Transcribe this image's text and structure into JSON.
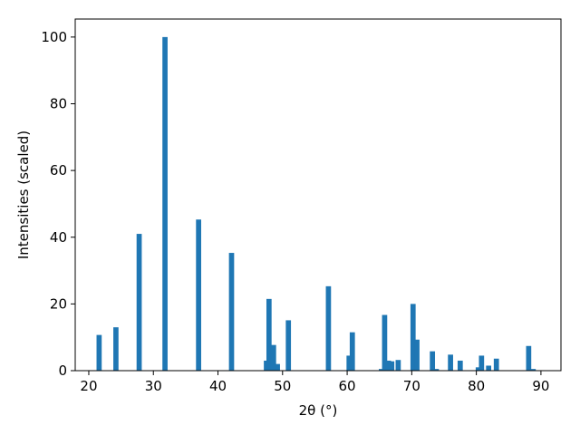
{
  "chart_data": {
    "type": "bar",
    "xlabel": "2θ (°)",
    "ylabel": "Intensities (scaled)",
    "x": [
      21.6,
      24.2,
      27.8,
      31.8,
      37.0,
      42.1,
      47.5,
      47.9,
      48.6,
      49.2,
      50.9,
      57.1,
      60.3,
      60.8,
      65.3,
      65.8,
      66.4,
      66.9,
      67.9,
      70.2,
      70.8,
      73.2,
      73.8,
      76.0,
      77.5,
      80.3,
      80.8,
      81.9,
      83.1,
      88.1,
      88.8
    ],
    "values": [
      10.7,
      13,
      41,
      100,
      45.3,
      35.3,
      3,
      21.5,
      7.7,
      2,
      15.1,
      25.3,
      4.5,
      11.5,
      0.5,
      16.7,
      3,
      2.8,
      3.2,
      20,
      9.3,
      5.8,
      0.5,
      4.8,
      3,
      1,
      4.5,
      1.5,
      3.6,
      7.4,
      0.5
    ],
    "bar_width": 0.8,
    "color": "#1f77b4",
    "xlim": [
      17.9,
      93.1
    ],
    "xticks": [
      20,
      30,
      40,
      50,
      60,
      70,
      80,
      90
    ],
    "ylim": [
      0,
      105.4
    ],
    "yticks": [
      0,
      20,
      40,
      60,
      80,
      100
    ]
  }
}
